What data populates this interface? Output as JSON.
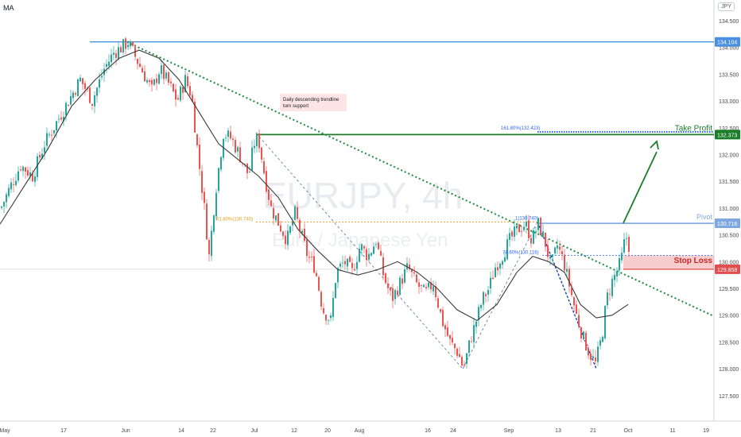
{
  "indicator_label": "MA",
  "currency_button": "JPY",
  "watermark": {
    "symbol": "EURJPY, 4h",
    "subtitle": "Euro / Japanese Yen"
  },
  "annotations": {
    "trendline_note": "Daily descending trendline turn support",
    "take_profit": "Take Profit",
    "pivot": "Pivot",
    "stop_loss": "Stop Loss",
    "fib_161": "161.80%(132.423)",
    "fib_1": "1(130.740)",
    "fib_618": "61.80%(130.740)",
    "fib_786": "78.60%(130.116)"
  },
  "colors": {
    "up": "#26a69a",
    "down": "#ef5350",
    "ma": "#3a3a3a",
    "trendline": "#1f8a3c",
    "take_profit": "#1b7d2a",
    "pivot": "#7fa8e0",
    "stop_loss": "#e34d4d",
    "resistance": "#4a90e2",
    "fib": "#e6a020",
    "fib_blue": "#2962ff"
  },
  "chart_data": {
    "type": "candlestick",
    "symbol": "EURJPY",
    "timeframe": "4h",
    "y_ticks": [
      127.5,
      128.0,
      128.5,
      129.0,
      129.5,
      130.0,
      130.5,
      131.0,
      131.5,
      132.0,
      132.5,
      133.0,
      133.5,
      134.0,
      134.5
    ],
    "x_ticks": [
      "May",
      "17",
      "Jun",
      "14",
      "22",
      "Jul",
      "12",
      "20",
      "Aug",
      "16",
      "24",
      "Sep",
      "13",
      "21",
      "Oct",
      "11",
      "19"
    ],
    "price_labels": [
      {
        "label": "134.104",
        "value": 134.104,
        "key": "resistance"
      },
      {
        "label": "132.373",
        "value": 132.373,
        "key": "take_profit"
      },
      {
        "label": "130.716",
        "value": 130.716,
        "key": "pivot"
      },
      {
        "label": "129.858",
        "value": 129.858,
        "key": "stop_loss"
      }
    ],
    "key_levels": {
      "resistance": 134.104,
      "take_profit": 132.373,
      "fib_161": 132.423,
      "pivot": 130.716,
      "fib_1": 130.74,
      "fib_618": 130.74,
      "fib_786": 130.116,
      "stop_loss": 129.858
    },
    "waypoints": [
      [
        0,
        131.0
      ],
      [
        12,
        131.4
      ],
      [
        25,
        131.8
      ],
      [
        40,
        131.6
      ],
      [
        55,
        132.2
      ],
      [
        70,
        132.6
      ],
      [
        85,
        133.0
      ],
      [
        100,
        133.4
      ],
      [
        115,
        133.0
      ],
      [
        130,
        133.6
      ],
      [
        142,
        133.9
      ],
      [
        152,
        134.0
      ],
      [
        160,
        134.1
      ],
      [
        170,
        133.8
      ],
      [
        180,
        133.5
      ],
      [
        190,
        133.2
      ],
      [
        200,
        133.6
      ],
      [
        212,
        133.3
      ],
      [
        222,
        133.0
      ],
      [
        232,
        133.4
      ],
      [
        240,
        133.1
      ],
      [
        248,
        132.0
      ],
      [
        256,
        131.0
      ],
      [
        262,
        130.1
      ],
      [
        270,
        131.3
      ],
      [
        280,
        132.4
      ],
      [
        290,
        132.3
      ],
      [
        300,
        132.0
      ],
      [
        312,
        131.6
      ],
      [
        318,
        132.2
      ],
      [
        324,
        132.3
      ],
      [
        332,
        131.6
      ],
      [
        340,
        131.0
      ],
      [
        350,
        130.7
      ],
      [
        360,
        130.4
      ],
      [
        370,
        130.9
      ],
      [
        378,
        130.5
      ],
      [
        386,
        130.1
      ],
      [
        395,
        129.9
      ],
      [
        405,
        129.1
      ],
      [
        415,
        128.9
      ],
      [
        422,
        129.8
      ],
      [
        432,
        130.0
      ],
      [
        442,
        129.8
      ],
      [
        452,
        130.3
      ],
      [
        462,
        130.1
      ],
      [
        472,
        130.4
      ],
      [
        482,
        129.7
      ],
      [
        492,
        129.3
      ],
      [
        502,
        129.6
      ],
      [
        512,
        129.9
      ],
      [
        522,
        129.6
      ],
      [
        534,
        129.4
      ],
      [
        544,
        129.6
      ],
      [
        555,
        128.9
      ],
      [
        565,
        128.5
      ],
      [
        575,
        128.3
      ],
      [
        582,
        128.0
      ],
      [
        590,
        128.5
      ],
      [
        598,
        128.9
      ],
      [
        606,
        129.3
      ],
      [
        614,
        129.5
      ],
      [
        622,
        129.9
      ],
      [
        630,
        130.1
      ],
      [
        640,
        130.4
      ],
      [
        650,
        130.6
      ],
      [
        660,
        130.7
      ],
      [
        668,
        130.4
      ],
      [
        676,
        130.7
      ],
      [
        684,
        130.4
      ],
      [
        692,
        129.9
      ],
      [
        700,
        130.3
      ],
      [
        708,
        130.0
      ],
      [
        716,
        129.5
      ],
      [
        724,
        129.0
      ],
      [
        732,
        128.6
      ],
      [
        740,
        128.3
      ],
      [
        748,
        128.1
      ],
      [
        756,
        128.6
      ],
      [
        762,
        129.3
      ],
      [
        768,
        129.6
      ],
      [
        774,
        129.8
      ],
      [
        780,
        130.0
      ],
      [
        786,
        130.5
      ],
      [
        790,
        130.3
      ]
    ],
    "moving_average": [
      [
        0,
        130.7
      ],
      [
        30,
        131.4
      ],
      [
        60,
        132.1
      ],
      [
        90,
        132.9
      ],
      [
        120,
        133.4
      ],
      [
        150,
        133.8
      ],
      [
        175,
        133.95
      ],
      [
        200,
        133.8
      ],
      [
        225,
        133.4
      ],
      [
        250,
        132.8
      ],
      [
        275,
        132.2
      ],
      [
        300,
        131.9
      ],
      [
        325,
        131.6
      ],
      [
        350,
        131.2
      ],
      [
        375,
        130.6
      ],
      [
        400,
        130.2
      ],
      [
        425,
        129.85
      ],
      [
        450,
        129.75
      ],
      [
        475,
        129.85
      ],
      [
        500,
        130.0
      ],
      [
        525,
        129.8
      ],
      [
        550,
        129.5
      ],
      [
        575,
        129.1
      ],
      [
        600,
        128.9
      ],
      [
        625,
        129.2
      ],
      [
        650,
        129.8
      ],
      [
        670,
        130.1
      ],
      [
        690,
        130.0
      ],
      [
        710,
        129.8
      ],
      [
        730,
        129.2
      ],
      [
        750,
        128.95
      ],
      [
        770,
        129.0
      ],
      [
        790,
        129.2
      ]
    ]
  }
}
